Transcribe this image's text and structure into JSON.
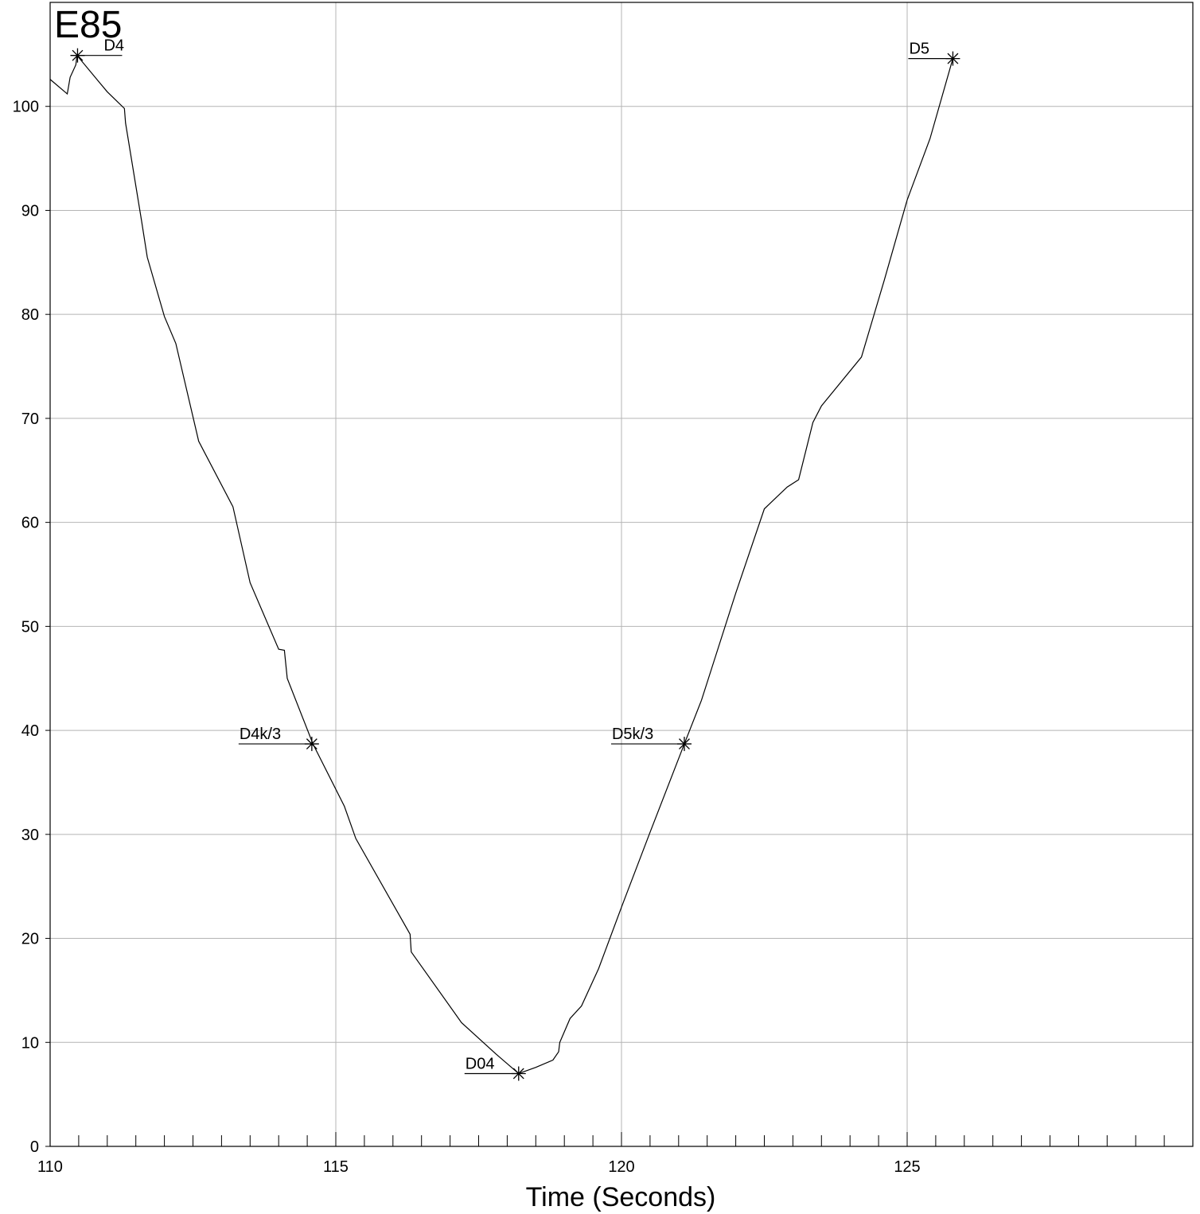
{
  "chart_data": {
    "type": "line",
    "title": "E85",
    "xlabel": "Time (Seconds)",
    "ylabel": "",
    "xlim": [
      110,
      130
    ],
    "ylim": [
      0,
      110
    ],
    "x_ticks": [
      110,
      115,
      120,
      125
    ],
    "x_minor_step": 0.5,
    "y_ticks": [
      0,
      10,
      20,
      30,
      40,
      50,
      60,
      70,
      80,
      90,
      100
    ],
    "grid": true,
    "line_color": "#000000",
    "grid_color": "#b4b4b4",
    "series": [
      {
        "x": [
          110.0,
          110.3,
          110.35,
          110.45,
          110.47,
          111.0,
          111.3,
          111.32,
          111.6,
          111.7,
          112.0,
          112.2,
          112.6,
          113.2,
          113.5,
          114.0,
          114.1,
          114.15,
          114.6,
          115.15,
          115.35,
          116.3,
          116.32,
          117.2,
          117.8,
          118.2,
          118.5,
          118.8,
          118.9,
          118.92,
          119.1,
          119.3,
          119.6,
          120.0,
          120.5,
          121.1,
          121.4,
          122.0,
          122.5,
          122.9,
          123.1,
          123.35,
          123.5,
          124.2,
          124.6,
          125.0,
          125.4,
          125.8
        ],
        "y": [
          102.6,
          101.2,
          102.8,
          104.0,
          104.9,
          101.4,
          99.8,
          98.4,
          89.0,
          85.5,
          79.8,
          77.2,
          67.8,
          61.5,
          54.2,
          47.8,
          47.7,
          45.0,
          38.7,
          32.7,
          29.6,
          20.4,
          18.7,
          11.9,
          8.9,
          7.0,
          7.6,
          8.3,
          9.1,
          10.0,
          12.3,
          13.5,
          17.1,
          23.0,
          30.2,
          38.7,
          42.9,
          53.2,
          61.3,
          63.4,
          64.1,
          69.6,
          71.2,
          75.9,
          83.3,
          91.0,
          96.9,
          104.6
        ]
      }
    ],
    "annotations": [
      {
        "label": "D4",
        "x": 110.48,
        "y": 104.9,
        "side": "right"
      },
      {
        "label": "D4k/3",
        "x": 114.58,
        "y": 38.7,
        "side": "left"
      },
      {
        "label": "D04",
        "x": 118.2,
        "y": 7.0,
        "side": "left"
      },
      {
        "label": "D5k/3",
        "x": 121.1,
        "y": 38.7,
        "side": "left"
      },
      {
        "label": "D5",
        "x": 125.8,
        "y": 104.6,
        "side": "left"
      }
    ]
  }
}
